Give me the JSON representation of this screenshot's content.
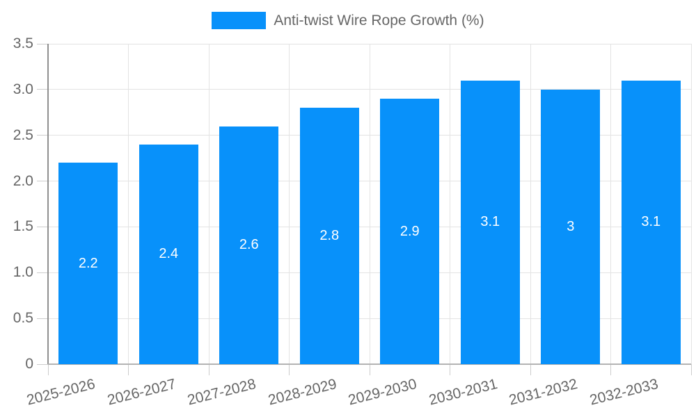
{
  "legend": {
    "label": "Anti-twist Wire Rope Growth (%)"
  },
  "colors": {
    "bar": "#0891fa",
    "grid": "#e3e3e3",
    "tick": "#cccccc",
    "y_axis_line": "#8f8f8f",
    "x_axis_line": "#b3b3b3",
    "text": "#666666",
    "bar_label": "#ffffff",
    "background": "#ffffff"
  },
  "chart_data": {
    "type": "bar",
    "title": "",
    "xlabel": "",
    "ylabel": "",
    "categories": [
      "2025-2026",
      "2026-2027",
      "2027-2028",
      "2028-2029",
      "2029-2030",
      "2030-2031",
      "2031-2032",
      "2032-2033"
    ],
    "series": [
      {
        "name": "Anti-twist Wire Rope Growth (%)",
        "values": [
          2.2,
          2.4,
          2.6,
          2.8,
          2.9,
          3.1,
          3,
          3.1
        ],
        "value_labels": [
          "2.2",
          "2.4",
          "2.6",
          "2.8",
          "2.9",
          "3.1",
          "3",
          "3.1"
        ]
      }
    ],
    "ylim": [
      0,
      3.5
    ],
    "yticks": [
      0,
      0.5,
      1,
      1.5,
      2,
      2.5,
      3,
      3.5
    ],
    "ytick_labels": [
      "0",
      "0.5",
      "1.0",
      "1.5",
      "2.0",
      "2.5",
      "3.0",
      "3.5"
    ],
    "grid": true,
    "legend_position": "top",
    "x_label_rotation_deg": -14,
    "bar_labels_inside": true
  }
}
